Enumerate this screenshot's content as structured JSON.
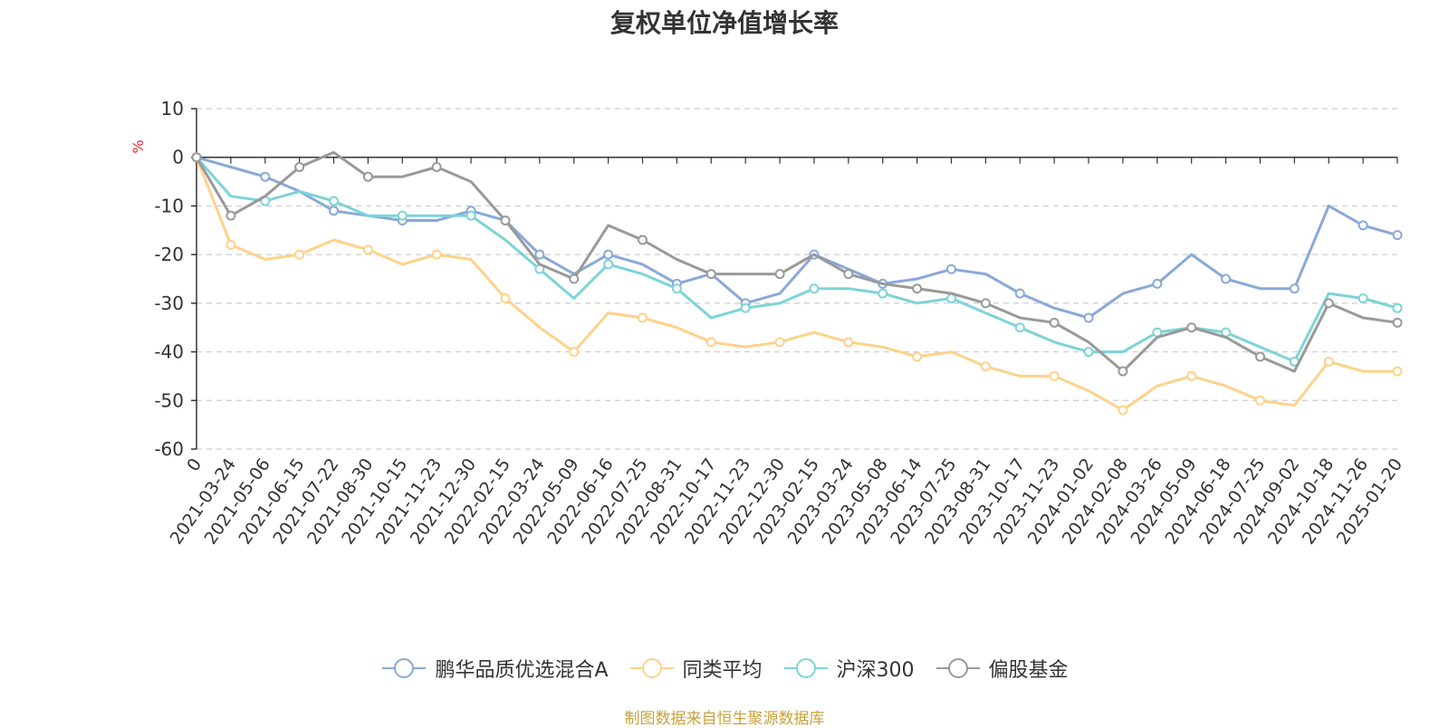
{
  "chart_data": {
    "type": "line",
    "title": "复权单位净值增长率",
    "ylabel": "%",
    "ylim": [
      -60,
      10
    ],
    "yticks": [
      10,
      0,
      -10,
      -20,
      -30,
      -40,
      -50,
      -60
    ],
    "grid": true,
    "legend_position": "bottom",
    "x_labels": [
      "0",
      "2021-03-24",
      "2021-05-06",
      "2021-06-15",
      "2021-07-22",
      "2021-08-30",
      "2021-10-15",
      "2021-11-23",
      "2021-12-30",
      "2022-02-15",
      "2022-03-24",
      "2022-05-09",
      "2022-06-16",
      "2022-07-25",
      "2022-08-31",
      "2022-10-17",
      "2022-11-23",
      "2022-12-30",
      "2023-02-15",
      "2023-03-24",
      "2023-05-08",
      "2023-06-14",
      "2023-07-25",
      "2023-08-31",
      "2023-10-17",
      "2023-11-23",
      "2024-01-02",
      "2024-02-08",
      "2024-03-26",
      "2024-05-09",
      "2024-06-18",
      "2024-07-25",
      "2024-09-02",
      "2024-10-18",
      "2024-11-26",
      "2025-01-20"
    ],
    "series": [
      {
        "name": "鹏华品质优选混合A",
        "color": "#8aa8d8",
        "values": [
          0,
          -2,
          -4,
          -7,
          -11,
          -12,
          -13,
          -13,
          -11,
          -13,
          -20,
          -24,
          -20,
          -22,
          -26,
          -24,
          -30,
          -28,
          -20,
          -23,
          -26,
          -25,
          -23,
          -24,
          -28,
          -31,
          -33,
          -28,
          -26,
          -20,
          -25,
          -27,
          -27,
          -10,
          -14,
          -16
        ]
      },
      {
        "name": "同类平均",
        "color": "#fdd28a",
        "values": [
          0,
          -18,
          -21,
          -20,
          -17,
          -19,
          -22,
          -20,
          -21,
          -29,
          -35,
          -40,
          -32,
          -33,
          -35,
          -38,
          -39,
          -38,
          -36,
          -38,
          -39,
          -41,
          -40,
          -43,
          -45,
          -45,
          -48,
          -52,
          -47,
          -45,
          -47,
          -50,
          -51,
          -42,
          -44,
          -44
        ]
      },
      {
        "name": "沪深300",
        "color": "#7dd3d8",
        "values": [
          0,
          -8,
          -9,
          -7,
          -9,
          -12,
          -12,
          -12,
          -12,
          -17,
          -23,
          -29,
          -22,
          -24,
          -27,
          -33,
          -31,
          -30,
          -27,
          -27,
          -28,
          -30,
          -29,
          -32,
          -35,
          -38,
          -40,
          -40,
          -36,
          -35,
          -36,
          -39,
          -42,
          -28,
          -29,
          -31
        ]
      },
      {
        "name": "偏股基金",
        "color": "#999999",
        "values": [
          0,
          -12,
          -8,
          -2,
          1,
          -4,
          -4,
          -2,
          -5,
          -13,
          -22,
          -25,
          -14,
          -17,
          -21,
          -24,
          -24,
          -24,
          -20,
          -24,
          -26,
          -27,
          -28,
          -30,
          -33,
          -34,
          -38,
          -44,
          -37,
          -35,
          -37,
          -41,
          -44,
          -30,
          -33,
          -34
        ]
      }
    ]
  },
  "source_note": "制图数据来自恒生聚源数据库"
}
